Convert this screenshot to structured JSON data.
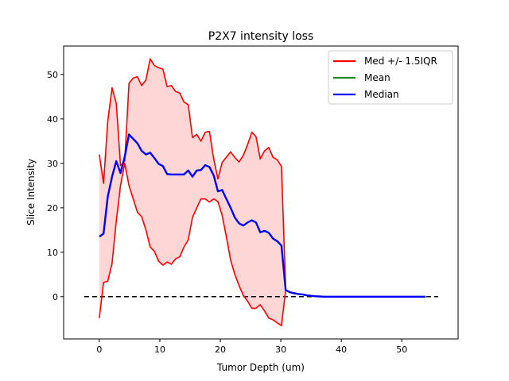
{
  "chart_data": {
    "type": "line",
    "title": "P2X7 intensity loss",
    "xlabel": "Tumor Depth (um)",
    "ylabel": "Slice Intensity",
    "xlim": [
      -5.9,
      59.3
    ],
    "ylim": [
      -9.5,
      56.4
    ],
    "xticks": [
      0,
      10,
      20,
      30,
      40,
      50
    ],
    "yticks": [
      0,
      10,
      20,
      30,
      40,
      50
    ],
    "grid": false,
    "legend_position": "top-right",
    "colors": {
      "upper": "#ff0000",
      "lower": "#ff0000",
      "band": "#ffd6d6",
      "mean": "#228b22",
      "median": "#0000ff",
      "zero": "#000000"
    },
    "legend": [
      {
        "label": "Med +/- 1.5IQR",
        "color": "#ff0000"
      },
      {
        "label": "Mean",
        "color": "#228b22"
      },
      {
        "label": "Median",
        "color": "#0000ff"
      }
    ],
    "zero_line": {
      "x": [
        -2.5,
        56.0
      ],
      "y": 0
    },
    "x": [
      0,
      0.7,
      1.4,
      2.1,
      2.8,
      3.5,
      4.2,
      4.9,
      5.6,
      6.3,
      7.0,
      7.7,
      8.4,
      9.1,
      9.8,
      10.5,
      11.2,
      11.9,
      12.6,
      13.3,
      14.0,
      14.7,
      15.4,
      16.1,
      16.8,
      17.5,
      18.2,
      18.9,
      19.6,
      20.3,
      21.0,
      21.7,
      22.4,
      23.1,
      23.8,
      24.5,
      25.2,
      25.9,
      26.6,
      27.3,
      28.0,
      28.7,
      29.4,
      30.1,
      30.8,
      31.5,
      32.2,
      32.9,
      33.6,
      34.3,
      35.0,
      35.7,
      36.4,
      37.1,
      37.8,
      38.5,
      39.2,
      39.9,
      40.6,
      41.3,
      42.0,
      45.0,
      48.0,
      51.0,
      53.9
    ],
    "upper": [
      32.0,
      25.5,
      39.5,
      47.0,
      43.5,
      29.5,
      30.5,
      48.0,
      49.2,
      49.5,
      47.5,
      48.8,
      53.5,
      52.0,
      51.5,
      51.2,
      47.3,
      47.5,
      46.2,
      45.8,
      43.8,
      43.2,
      35.8,
      36.5,
      35.0,
      37.0,
      37.2,
      31.0,
      26.5,
      30.2,
      31.4,
      32.6,
      31.3,
      30.3,
      31.8,
      34.2,
      37.0,
      36.0,
      31.0,
      32.8,
      33.6,
      31.4,
      30.8,
      29.3,
      1.5,
      1.0,
      0.7,
      0.6,
      0.5,
      0.3,
      0.2,
      0.1,
      0.05,
      0.0,
      0.0,
      0.0,
      0.0,
      0.0,
      0.0,
      0.0,
      0.0,
      0.0,
      0.0,
      0.0,
      0.0
    ],
    "lower": [
      -4.8,
      3.2,
      3.5,
      7.5,
      17.0,
      25.0,
      30.0,
      25.0,
      22.0,
      19.0,
      18.0,
      15.0,
      11.2,
      10.2,
      8.0,
      7.1,
      7.8,
      7.3,
      8.5,
      9.0,
      11.2,
      12.8,
      17.8,
      20.0,
      22.0,
      22.0,
      21.3,
      22.0,
      21.4,
      18.3,
      13.5,
      8.2,
      5.0,
      2.5,
      0.3,
      -1.0,
      -2.6,
      -2.6,
      -1.8,
      -3.2,
      -4.8,
      -5.2,
      -5.9,
      -6.5,
      1.5,
      1.0,
      0.7,
      0.6,
      0.5,
      0.3,
      0.2,
      0.1,
      0.05,
      0.0,
      0.0,
      0.0,
      0.0,
      0.0,
      0.0,
      0.0,
      0.0,
      0.0,
      0.0,
      0.0,
      0.0
    ],
    "median": [
      13.5,
      14.2,
      22.5,
      27.0,
      30.5,
      27.8,
      31.5,
      36.5,
      35.5,
      34.5,
      32.8,
      32.0,
      32.4,
      31.2,
      29.9,
      29.4,
      27.6,
      27.5,
      27.5,
      27.5,
      27.5,
      28.4,
      27.0,
      28.4,
      28.5,
      29.6,
      29.2,
      27.3,
      23.7,
      24.0,
      22.0,
      20.0,
      17.8,
      16.5,
      16.0,
      16.7,
      17.2,
      16.7,
      14.5,
      14.8,
      14.4,
      13.1,
      12.5,
      11.5,
      1.5,
      1.0,
      0.8,
      0.6,
      0.5,
      0.3,
      0.2,
      0.1,
      0.05,
      0.0,
      0.0,
      0.0,
      0.0,
      0.0,
      0.0,
      0.0,
      0.0,
      0.0,
      0.0,
      0.0,
      0.0
    ]
  }
}
